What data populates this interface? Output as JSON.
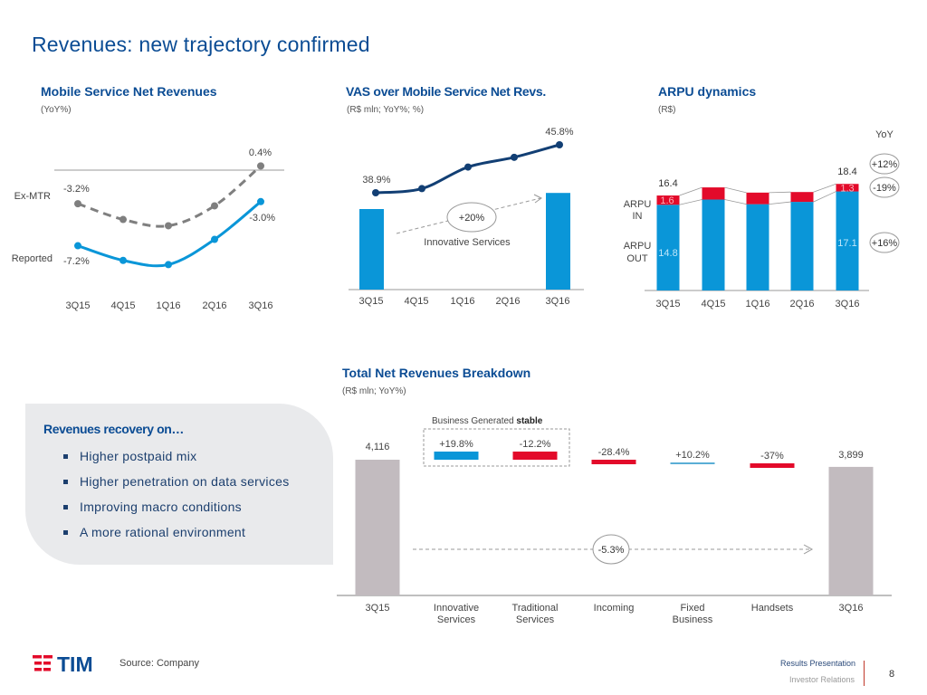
{
  "page": {
    "title": "Revenues: new trajectory confirmed",
    "page_number": "8",
    "source": "Source: Company",
    "footer_line1": "Results Presentation",
    "footer_line2": "Investor Relations",
    "logo_text": "TIM"
  },
  "colors": {
    "brand_blue": "#0b4c94",
    "bar_blue": "#0a96d8",
    "red": "#e30a2a",
    "gray_bar": "#c2bbbf",
    "dashed_gray": "#7f7f7f",
    "navy_line": "#123f74"
  },
  "panel": {
    "title": "Revenues recovery on…",
    "bullets": [
      "Higher postpaid mix",
      "Higher penetration on data services",
      "Improving macro conditions",
      "A more rational environment"
    ]
  },
  "chart_data": [
    {
      "type": "line",
      "title": "Mobile Service Net Revenues",
      "subtitle": "(YoY%)",
      "categories": [
        "3Q15",
        "4Q15",
        "1Q16",
        "2Q16",
        "3Q16"
      ],
      "series": [
        {
          "name": "Ex-MTR",
          "style": "dashed",
          "values": [
            -3.2,
            -4.7,
            -5.3,
            -3.4,
            0.4
          ],
          "labels": {
            "0": "-3.2%",
            "4": "0.4%"
          }
        },
        {
          "name": "Reported",
          "style": "solid",
          "values": [
            -7.2,
            -8.6,
            -9.0,
            -6.6,
            -3.0
          ],
          "labels": {
            "0": "-7.2%",
            "4": "-3.0%"
          }
        }
      ],
      "reference_line": 0,
      "ylim": [
        -10,
        1.5
      ]
    },
    {
      "type": "bar",
      "title": "VAS over Mobile Service Net Revs.",
      "subtitle": "(R$ mln; YoY%; %)",
      "categories": [
        "3Q15",
        "4Q15",
        "1Q16",
        "2Q16",
        "3Q16"
      ],
      "bars": {
        "name": "Innovative Services",
        "categories": [
          "3Q15",
          "3Q16"
        ],
        "relative_values": [
          1.0,
          1.2
        ]
      },
      "line": {
        "name": "VAS share",
        "values": [
          38.9,
          39.5,
          42.6,
          44.0,
          45.8
        ],
        "labels": {
          "0": "38.9%",
          "4": "45.8%"
        }
      },
      "annotation": {
        "text": "+20%",
        "label": "Innovative Services"
      }
    },
    {
      "type": "bar",
      "stacked": true,
      "title": "ARPU dynamics",
      "subtitle": "(R$)",
      "categories": [
        "3Q15",
        "4Q15",
        "1Q16",
        "2Q16",
        "3Q16"
      ],
      "series": [
        {
          "name": "ARPU OUT",
          "label": "ARPU OUT",
          "values": [
            14.8,
            15.7,
            14.9,
            15.3,
            17.1
          ],
          "yoy": "+16%"
        },
        {
          "name": "ARPU IN",
          "label": "ARPU IN",
          "values": [
            1.6,
            2.1,
            2.0,
            1.7,
            1.3
          ],
          "yoy": "-19%"
        }
      ],
      "totals": [
        16.4,
        17.8,
        16.9,
        17.0,
        18.4
      ],
      "total_yoy": "+12%",
      "yoy_header": "YoY",
      "value_labels": {
        "total_first": "16.4",
        "total_last": "18.4",
        "in_first": "1.6",
        "in_last": "1.3",
        "out_first": "14.8",
        "out_last": "17.1"
      }
    },
    {
      "type": "bar",
      "waterfall": true,
      "title": "Total Net Revenues Breakdown",
      "subtitle": "(R$ mln; YoY%)",
      "categories": [
        "3Q15",
        "Innovative Services",
        "Traditional Services",
        "Incoming",
        "Fixed Business",
        "Handsets",
        "3Q16"
      ],
      "category_lines": [
        [
          "3Q15"
        ],
        [
          "Innovative",
          "Services"
        ],
        [
          "Traditional",
          "Services"
        ],
        [
          "Incoming"
        ],
        [
          "Fixed",
          "Business"
        ],
        [
          "Handsets"
        ],
        [
          "3Q16"
        ]
      ],
      "start": 4116,
      "end": 3899,
      "start_label": "4,116",
      "end_label": "3,899",
      "steps": [
        {
          "category": "Innovative Services",
          "label": "+19.8%",
          "sign": "positive"
        },
        {
          "category": "Traditional Services",
          "label": "-12.2%",
          "sign": "negative"
        },
        {
          "category": "Incoming",
          "label": "-28.4%",
          "sign": "negative"
        },
        {
          "category": "Fixed Business",
          "label": "+10.2%",
          "sign": "positive"
        },
        {
          "category": "Handsets",
          "label": "-37%",
          "sign": "negative"
        }
      ],
      "group_label": "Business Generated",
      "group_status": "stable",
      "total_change": "-5.3%"
    }
  ]
}
